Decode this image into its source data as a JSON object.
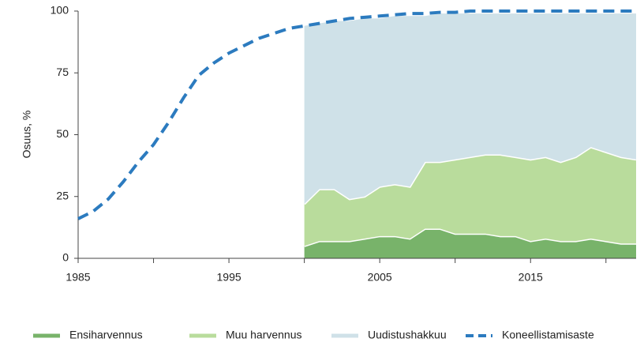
{
  "chart_data": {
    "type": "stacked-area-line",
    "ylabel": "Osuus, %",
    "xlim": [
      1985,
      2022
    ],
    "ylim": [
      0,
      100
    ],
    "xticks": [
      1985,
      1995,
      2005,
      2015
    ],
    "xminorticks": [
      1990,
      2000,
      2010,
      2020
    ],
    "yticks": [
      0,
      25,
      50,
      75,
      100
    ],
    "series": [
      {
        "name": "Ensiharvennus",
        "color": "#78b36a",
        "kind": "area",
        "x": [
          2000,
          2001,
          2002,
          2003,
          2004,
          2005,
          2006,
          2007,
          2008,
          2009,
          2010,
          2011,
          2012,
          2013,
          2014,
          2015,
          2016,
          2017,
          2018,
          2019,
          2020,
          2021,
          2022
        ],
        "values": [
          5,
          7,
          7,
          7,
          8,
          9,
          9,
          8,
          12,
          12,
          10,
          10,
          10,
          9,
          9,
          7,
          8,
          7,
          7,
          8,
          7,
          6,
          6
        ]
      },
      {
        "name": "Muu harvennus",
        "color": "#b9dc9c",
        "kind": "area",
        "x": [
          2000,
          2001,
          2002,
          2003,
          2004,
          2005,
          2006,
          2007,
          2008,
          2009,
          2010,
          2011,
          2012,
          2013,
          2014,
          2015,
          2016,
          2017,
          2018,
          2019,
          2020,
          2021,
          2022
        ],
        "values": [
          17,
          21,
          21,
          17,
          17,
          20,
          21,
          21,
          27,
          27,
          30,
          31,
          32,
          33,
          32,
          33,
          33,
          32,
          34,
          37,
          36,
          35,
          34
        ]
      },
      {
        "name": "Uudistushakkuu",
        "color": "#cfe1e8",
        "kind": "area",
        "x": [
          2000,
          2001,
          2002,
          2003,
          2004,
          2005,
          2006,
          2007,
          2008,
          2009,
          2010,
          2011,
          2012,
          2013,
          2014,
          2015,
          2016,
          2017,
          2018,
          2019,
          2020,
          2021,
          2022
        ],
        "values": [
          72,
          67,
          68,
          72,
          72,
          68,
          68,
          69,
          59,
          60,
          59,
          58,
          57,
          57,
          58,
          59,
          58,
          60,
          58,
          54,
          56,
          58,
          59
        ]
      },
      {
        "name": "Koneellistamisaste",
        "color": "#2c7bbf",
        "kind": "line",
        "x": [
          1985,
          1986,
          1987,
          1988,
          1989,
          1990,
          1991,
          1992,
          1993,
          1994,
          1995,
          1996,
          1997,
          1998,
          1999,
          2000,
          2001,
          2002,
          2003,
          2004,
          2005,
          2006,
          2007,
          2008,
          2009,
          2010,
          2011,
          2012,
          2013,
          2014,
          2015,
          2016,
          2017,
          2018,
          2019,
          2020,
          2021,
          2022
        ],
        "values": [
          16,
          19,
          24,
          31,
          39,
          46,
          55,
          65,
          74,
          79,
          83,
          86,
          89,
          91,
          93,
          94,
          95,
          96,
          97,
          97.5,
          98,
          98.5,
          99,
          99,
          99.5,
          99.5,
          100,
          100,
          100,
          100,
          100,
          100,
          100,
          100,
          100,
          100,
          100,
          100
        ]
      }
    ]
  }
}
